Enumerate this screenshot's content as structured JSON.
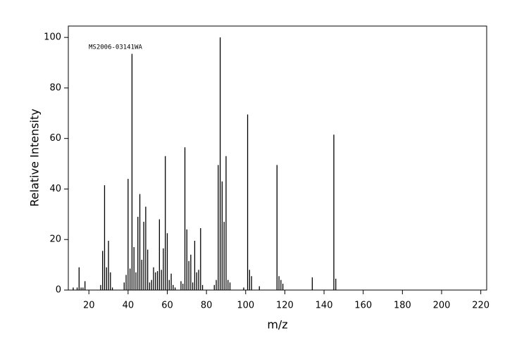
{
  "chart_data": {
    "type": "stem",
    "annotation": "MS2006-03141WA",
    "x_label": "m/z",
    "y_label": "Relative Intensity",
    "color": "#000000",
    "xlim": [
      9.5,
      223
    ],
    "ylim": [
      0,
      104.5
    ],
    "xticks": [
      20,
      40,
      60,
      80,
      100,
      120,
      140,
      160,
      180,
      200,
      220
    ],
    "yticks": [
      0,
      20,
      40,
      60,
      80,
      100
    ],
    "x": [
      12,
      14,
      15,
      16,
      17,
      18,
      26,
      27,
      28,
      29,
      30,
      31,
      32,
      38,
      39,
      40,
      41,
      42,
      43,
      44,
      45,
      46,
      47,
      48,
      49,
      50,
      51,
      52,
      53,
      54,
      55,
      56,
      57,
      58,
      59,
      60,
      61,
      62,
      63,
      64,
      67,
      68,
      69,
      70,
      71,
      72,
      73,
      74,
      75,
      76,
      77,
      78,
      84,
      85,
      86,
      87,
      88,
      89,
      90,
      91,
      92,
      99,
      101,
      102,
      103,
      107,
      116,
      117,
      118,
      119,
      134,
      145,
      146
    ],
    "values": [
      1,
      1,
      9,
      1,
      1,
      3.5,
      2,
      15.5,
      41.5,
      9,
      19.5,
      7,
      1,
      3,
      6,
      44,
      8.5,
      93.5,
      17,
      7,
      29,
      38,
      12,
      27,
      33,
      16,
      3,
      4,
      9,
      7,
      7.5,
      28,
      8,
      16.5,
      53,
      22.5,
      4,
      6.5,
      2,
      1,
      3.5,
      2.5,
      56.5,
      24,
      11.5,
      14,
      3,
      19.5,
      7,
      8,
      24.5,
      2,
      2,
      4,
      49.5,
      100,
      43,
      27,
      53,
      4,
      3,
      1,
      69.5,
      8,
      5.5,
      1.5,
      49.5,
      5.5,
      4,
      2.5,
      5,
      61.5,
      4.5
    ]
  }
}
